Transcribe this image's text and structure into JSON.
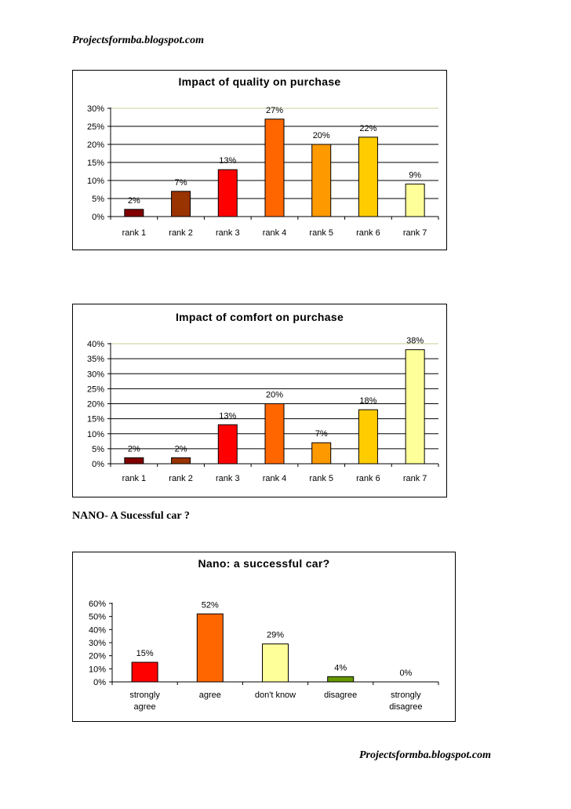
{
  "header": {
    "site": "Projectsformba.blogspot.com"
  },
  "footer": {
    "site": "Projectsformba.blogspot.com"
  },
  "section": {
    "heading": "NANO- A Sucessful car ?"
  },
  "chart_data": [
    {
      "type": "bar",
      "title": "Impact of quality on purchase",
      "categories": [
        "rank 1",
        "rank 2",
        "rank 3",
        "rank 4",
        "rank 5",
        "rank 6",
        "rank 7"
      ],
      "values": [
        2,
        7,
        13,
        27,
        20,
        22,
        9
      ],
      "value_labels": [
        "2%",
        "7%",
        "13%",
        "27%",
        "20%",
        "22%",
        "9%"
      ],
      "y_ticks": [
        "0%",
        "5%",
        "10%",
        "15%",
        "20%",
        "25%",
        "30%"
      ],
      "ylim": [
        0,
        30
      ],
      "y_step": 5,
      "colors": [
        "#800000",
        "#993300",
        "#ff0000",
        "#ff6600",
        "#ff9900",
        "#ffcc00",
        "#ffff99"
      ],
      "grid": true,
      "xlabel": "",
      "ylabel": ""
    },
    {
      "type": "bar",
      "title": "Impact of comfort on purchase",
      "categories": [
        "rank 1",
        "rank 2",
        "rank 3",
        "rank 4",
        "rank 5",
        "rank 6",
        "rank 7"
      ],
      "values": [
        2,
        2,
        13,
        20,
        7,
        18,
        38
      ],
      "value_labels": [
        "2%",
        "2%",
        "13%",
        "20%",
        "7%",
        "18%",
        "38%"
      ],
      "y_ticks": [
        "0%",
        "5%",
        "10%",
        "15%",
        "20%",
        "25%",
        "30%",
        "35%",
        "40%"
      ],
      "ylim": [
        0,
        40
      ],
      "y_step": 5,
      "colors": [
        "#800000",
        "#993300",
        "#ff0000",
        "#ff6600",
        "#ff9900",
        "#ffcc00",
        "#ffff99"
      ],
      "grid": true,
      "xlabel": "",
      "ylabel": ""
    },
    {
      "type": "bar",
      "title": "Nano: a successful car?",
      "categories": [
        [
          "strongly",
          "agree"
        ],
        [
          "agree"
        ],
        [
          "don't know"
        ],
        [
          "disagree"
        ],
        [
          "strongly",
          "disagree"
        ]
      ],
      "values": [
        15,
        52,
        29,
        4,
        0
      ],
      "value_labels": [
        "15%",
        "52%",
        "29%",
        "4%",
        "0%"
      ],
      "y_ticks": [
        "0%",
        "10%",
        "20%",
        "30%",
        "40%",
        "50%",
        "60%"
      ],
      "ylim": [
        0,
        60
      ],
      "y_step": 10,
      "colors": [
        "#ff0000",
        "#ff6600",
        "#ffff99",
        "#669900",
        "#ffffff"
      ],
      "grid": false,
      "xlabel": "",
      "ylabel": ""
    }
  ]
}
